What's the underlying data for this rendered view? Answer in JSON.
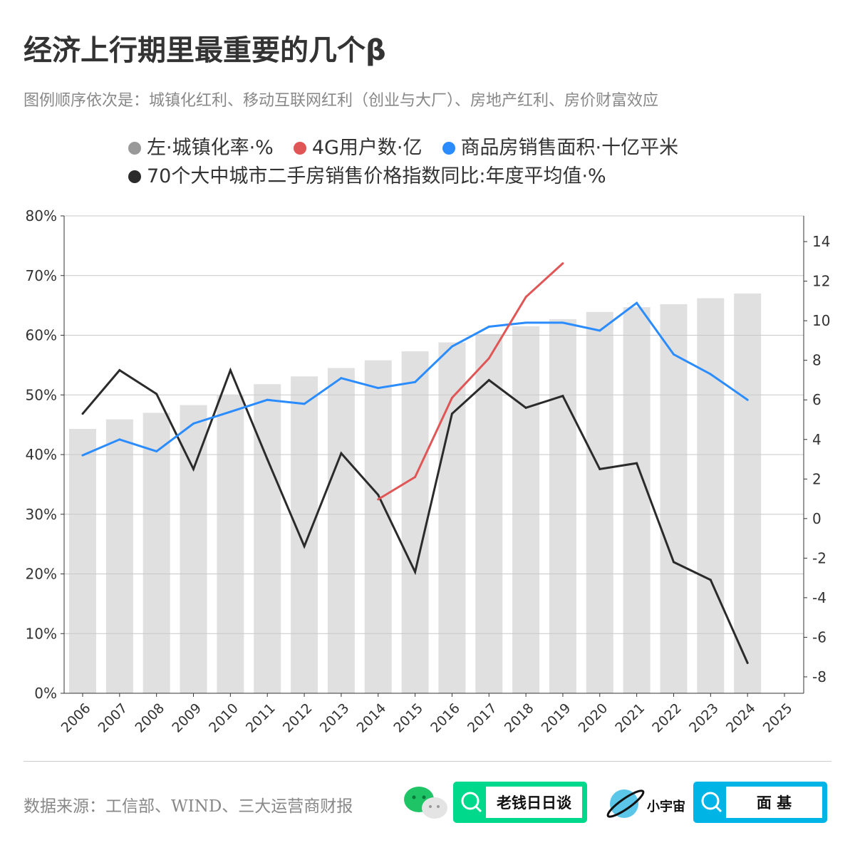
{
  "header": {
    "title": "经济上行期里最重要的几个β",
    "subtitle": "图例顺序依次是：城镇化红利、移动互联网红利（创业与大厂）、房地产红利、房价财富效应"
  },
  "chart_data": {
    "type": "bar+line",
    "categories": [
      "2006",
      "2007",
      "2008",
      "2009",
      "2010",
      "2011",
      "2012",
      "2013",
      "2014",
      "2015",
      "2016",
      "2017",
      "2018",
      "2019",
      "2020",
      "2021",
      "2022",
      "2023",
      "2024",
      "2025"
    ],
    "left_axis": {
      "range": [
        0,
        80
      ],
      "ticks": [
        "0%",
        "10%",
        "20%",
        "30%",
        "40%",
        "50%",
        "60%",
        "70%",
        "80%"
      ]
    },
    "right_axis": {
      "range": [
        -8.83,
        15.3
      ],
      "ticks": [
        "-8",
        "-6",
        "-4",
        "-2",
        "0",
        "2",
        "4",
        "6",
        "8",
        "10",
        "12",
        "14"
      ]
    },
    "grid": true,
    "legend_placement": "top",
    "series": [
      {
        "name": "左·城镇化率·%",
        "type": "bar",
        "axis": "left",
        "color": "#e0e0e0",
        "legend_color": "#999999",
        "values": [
          44.3,
          45.9,
          47.0,
          48.3,
          49.9,
          51.8,
          53.1,
          54.5,
          55.8,
          57.3,
          58.8,
          60.2,
          61.5,
          62.7,
          63.9,
          64.7,
          65.2,
          66.2,
          67.0,
          null
        ]
      },
      {
        "name": "4G用户数·亿",
        "type": "line",
        "axis": "right",
        "color": "#e05555",
        "values": [
          null,
          null,
          null,
          null,
          null,
          null,
          null,
          null,
          0.97,
          2.1,
          6.1,
          8.1,
          11.2,
          12.9,
          null,
          null,
          null,
          null,
          null,
          null
        ]
      },
      {
        "name": "商品房销售面积·十亿平米",
        "type": "line",
        "axis": "right",
        "color": "#2a8cff",
        "values": [
          3.2,
          4.0,
          3.4,
          4.8,
          5.4,
          6.0,
          5.8,
          7.1,
          6.6,
          6.9,
          8.7,
          9.7,
          9.9,
          9.9,
          9.5,
          10.9,
          8.3,
          7.3,
          6.0,
          null
        ]
      },
      {
        "name": "70个大中城市二手房销售价格指数同比:年度平均值·%",
        "type": "line",
        "axis": "right",
        "color": "#2b2b2b",
        "values": [
          5.3,
          7.5,
          6.3,
          2.5,
          7.5,
          3.0,
          -1.4,
          3.3,
          1.2,
          -2.7,
          5.3,
          7.0,
          5.6,
          6.2,
          2.5,
          2.8,
          -2.2,
          -3.1,
          -7.3,
          null
        ]
      }
    ]
  },
  "footer": {
    "source": "数据来源：工信部、WIND、三大运营商财报",
    "badge1": "老钱日日谈",
    "brand2": "小宇宙",
    "badge2": "面 基",
    "badge1_color": "#00d98b",
    "badge2_color": "#00b4e6"
  }
}
